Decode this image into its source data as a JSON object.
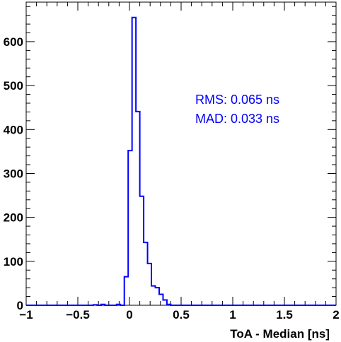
{
  "chart_data": {
    "type": "histogram",
    "title": "",
    "xlabel": "ToA - Median [ns]",
    "ylabel": "",
    "xlim": [
      -1,
      2
    ],
    "ylim": [
      0,
      690
    ],
    "x_ticks": [
      -1,
      -0.5,
      0,
      0.5,
      1,
      1.5,
      2
    ],
    "x_tick_labels": [
      "−1",
      "−0.5",
      "0",
      "0.5",
      "1",
      "1.5",
      "2"
    ],
    "y_ticks": [
      0,
      100,
      200,
      300,
      400,
      500,
      600
    ],
    "y_tick_labels": [
      "0",
      "100",
      "200",
      "300",
      "400",
      "500",
      "600"
    ],
    "grid": false,
    "legend": "none",
    "line_color": "#0000ff",
    "bin_width": 0.0375,
    "bin_edges_start": -0.35,
    "values": [
      1,
      0,
      2,
      0,
      0,
      0,
      2,
      0,
      65,
      352,
      655,
      441,
      248,
      143,
      95,
      44,
      40,
      25,
      12,
      2,
      0
    ],
    "annotations": [
      {
        "text": "RMS: 0.065 ns",
        "color": "#0000ff"
      },
      {
        "text": "MAD: 0.033 ns",
        "color": "#0000ff"
      }
    ]
  }
}
